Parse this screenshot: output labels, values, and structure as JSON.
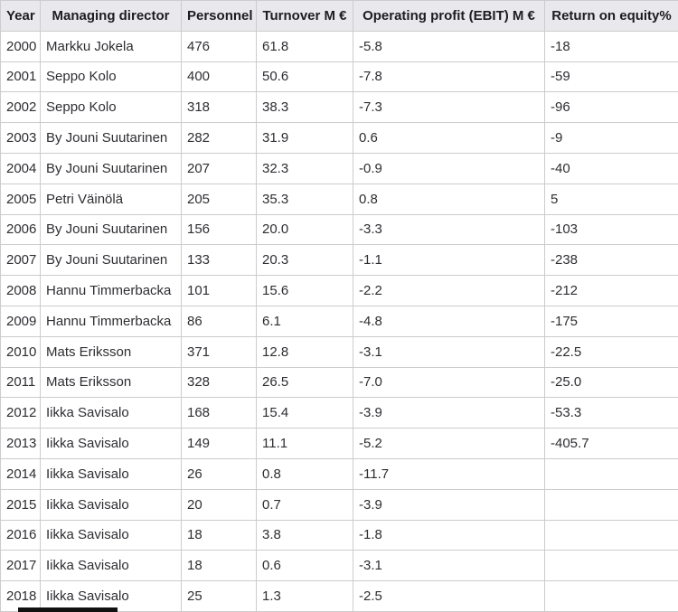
{
  "table": {
    "columns": [
      "Year",
      "Managing director",
      "Personnel",
      "Turnover M €",
      "Operating profit (EBIT) M €",
      "Return on equity%"
    ],
    "rows": [
      {
        "year": "2000",
        "director": "Markku Jokela",
        "personnel": "476",
        "turnover": "61.8",
        "ebit": "-5.8",
        "roe": "-18"
      },
      {
        "year": "2001",
        "director": "Seppo Kolo",
        "personnel": "400",
        "turnover": "50.6",
        "ebit": "-7.8",
        "roe": "-59"
      },
      {
        "year": "2002",
        "director": "Seppo Kolo",
        "personnel": "318",
        "turnover": "38.3",
        "ebit": "-7.3",
        "roe": "-96"
      },
      {
        "year": "2003",
        "director": "By Jouni Suutarinen",
        "personnel": "282",
        "turnover": "31.9",
        "ebit": "0.6",
        "roe": "-9"
      },
      {
        "year": "2004",
        "director": "By Jouni Suutarinen",
        "personnel": "207",
        "turnover": "32.3",
        "ebit": "-0.9",
        "roe": "-40"
      },
      {
        "year": "2005",
        "director": "Petri Väinölä",
        "personnel": "205",
        "turnover": "35.3",
        "ebit": "0.8",
        "roe": "5"
      },
      {
        "year": "2006",
        "director": "By Jouni Suutarinen",
        "personnel": "156",
        "turnover": "20.0",
        "ebit": "-3.3",
        "roe": "-103"
      },
      {
        "year": "2007",
        "director": "By Jouni Suutarinen",
        "personnel": "133",
        "turnover": "20.3",
        "ebit": "-1.1",
        "roe": "-238"
      },
      {
        "year": "2008",
        "director": "Hannu Timmerbacka",
        "personnel": "101",
        "turnover": "15.6",
        "ebit": "-2.2",
        "roe": "-212"
      },
      {
        "year": "2009",
        "director": "Hannu Timmerbacka",
        "personnel": "86",
        "turnover": "6.1",
        "ebit": "-4.8",
        "roe": "-175"
      },
      {
        "year": "2010",
        "director": "Mats Eriksson",
        "personnel": "371",
        "turnover": "12.8",
        "ebit": "-3.1",
        "roe": "-22.5"
      },
      {
        "year": "2011",
        "director": "Mats Eriksson",
        "personnel": "328",
        "turnover": "26.5",
        "ebit": "-7.0",
        "roe": "-25.0"
      },
      {
        "year": "2012",
        "director": "Iikka Savisalo",
        "personnel": "168",
        "turnover": "15.4",
        "ebit": "-3.9",
        "roe": "-53.3"
      },
      {
        "year": "2013",
        "director": "Iikka Savisalo",
        "personnel": "149",
        "turnover": "11.1",
        "ebit": "-5.2",
        "roe": "-405.7"
      },
      {
        "year": "2014",
        "director": "Iikka Savisalo",
        "personnel": "26",
        "turnover": "0.8",
        "ebit": "-11.7",
        "roe": ""
      },
      {
        "year": "2015",
        "director": "Iikka Savisalo",
        "personnel": "20",
        "turnover": "0.7",
        "ebit": "-3.9",
        "roe": ""
      },
      {
        "year": "2016",
        "director": "Iikka Savisalo",
        "personnel": "18",
        "turnover": "3.8",
        "ebit": "-1.8",
        "roe": ""
      },
      {
        "year": "2017",
        "director": "Iikka Savisalo",
        "personnel": "18",
        "turnover": "0.6",
        "ebit": "-3.1",
        "roe": ""
      },
      {
        "year": "2018",
        "director": "Iikka Savisalo",
        "personnel": "25",
        "turnover": "1.3",
        "ebit": "-2.5",
        "roe": ""
      }
    ]
  },
  "chart_data": {
    "type": "table",
    "columns": [
      "Year",
      "Managing director",
      "Personnel",
      "Turnover M €",
      "Operating profit (EBIT) M €",
      "Return on equity%"
    ],
    "rows": [
      [
        "2000",
        "Markku Jokela",
        "476",
        "61.8",
        "-5.8",
        "-18"
      ],
      [
        "2001",
        "Seppo Kolo",
        "400",
        "50.6",
        "-7.8",
        "-59"
      ],
      [
        "2002",
        "Seppo Kolo",
        "318",
        "38.3",
        "-7.3",
        "-96"
      ],
      [
        "2003",
        "By Jouni Suutarinen",
        "282",
        "31.9",
        "0.6",
        "-9"
      ],
      [
        "2004",
        "By Jouni Suutarinen",
        "207",
        "32.3",
        "-0.9",
        "-40"
      ],
      [
        "2005",
        "Petri Väinölä",
        "205",
        "35.3",
        "0.8",
        "5"
      ],
      [
        "2006",
        "By Jouni Suutarinen",
        "156",
        "20.0",
        "-3.3",
        "-103"
      ],
      [
        "2007",
        "By Jouni Suutarinen",
        "133",
        "20.3",
        "-1.1",
        "-238"
      ],
      [
        "2008",
        "Hannu Timmerbacka",
        "101",
        "15.6",
        "-2.2",
        "-212"
      ],
      [
        "2009",
        "Hannu Timmerbacka",
        "86",
        "6.1",
        "-4.8",
        "-175"
      ],
      [
        "2010",
        "Mats Eriksson",
        "371",
        "12.8",
        "-3.1",
        "-22.5"
      ],
      [
        "2011",
        "Mats Eriksson",
        "328",
        "26.5",
        "-7.0",
        "-25.0"
      ],
      [
        "2012",
        "Iikka Savisalo",
        "168",
        "15.4",
        "-3.9",
        "-53.3"
      ],
      [
        "2013",
        "Iikka Savisalo",
        "149",
        "11.1",
        "-5.2",
        "-405.7"
      ],
      [
        "2014",
        "Iikka Savisalo",
        "26",
        "0.8",
        "-11.7",
        ""
      ],
      [
        "2015",
        "Iikka Savisalo",
        "20",
        "0.7",
        "-3.9",
        ""
      ],
      [
        "2016",
        "Iikka Savisalo",
        "18",
        "3.8",
        "-1.8",
        ""
      ],
      [
        "2017",
        "Iikka Savisalo",
        "18",
        "0.6",
        "-3.1",
        ""
      ],
      [
        "2018",
        "Iikka Savisalo",
        "25",
        "1.3",
        "-2.5",
        ""
      ]
    ]
  },
  "colors": {
    "header_bg": "#e9e9ed",
    "border": "#cccccc",
    "header_text": "#1c1c21",
    "body_text": "#2e2e33"
  }
}
